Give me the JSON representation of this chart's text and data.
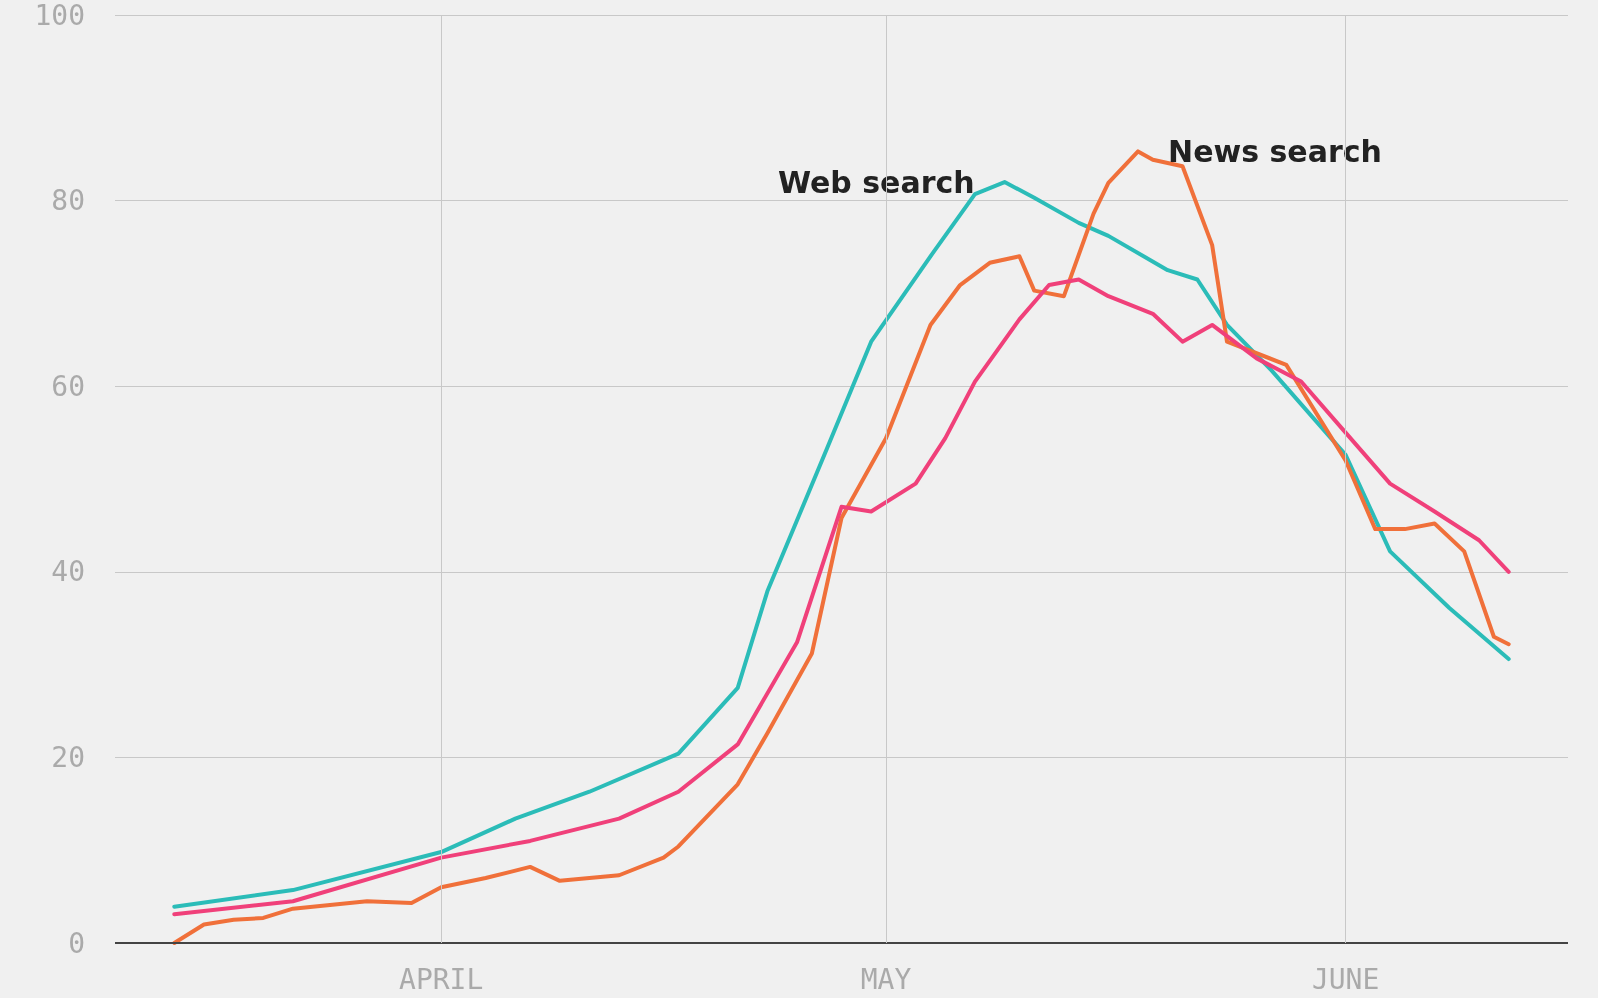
{
  "chart_data": {
    "type": "line",
    "xlim": [
      "--03-10",
      "--06-16"
    ],
    "ylim": [
      0,
      100
    ],
    "yticks": [
      0,
      20,
      40,
      60,
      80,
      100
    ],
    "xticks": [
      {
        "value": "--04-01",
        "label": "APRIL"
      },
      {
        "value": "--05-01",
        "label": "MAY"
      },
      {
        "value": "--06-01",
        "label": "JUNE"
      }
    ],
    "grid": true,
    "legend": false,
    "marker": "none",
    "line_style": "solid",
    "series": [
      {
        "name": "Web search",
        "color": "#2bbcb8",
        "x": [
          "--03-14",
          "--03-22",
          "--04-01",
          "--04-06",
          "--04-11",
          "--04-17",
          "--04-21",
          "--04-23",
          "--04-27",
          "--04-30",
          "--05-04",
          "--05-07",
          "--05-09",
          "--05-11",
          "--05-14",
          "--05-16",
          "--05-20",
          "--05-22",
          "--05-24",
          "--05-27",
          "--06-01",
          "--06-04",
          "--06-08",
          "--06-12"
        ],
        "values": [
          3.9,
          5.7,
          9.8,
          13.4,
          16.3,
          20.4,
          27.5,
          37.9,
          53.2,
          64.8,
          74,
          80.7,
          82,
          80.3,
          77.6,
          76.2,
          72.5,
          71.5,
          66.6,
          61.7,
          52.6,
          42.2,
          36.1,
          30.6
        ]
      },
      {
        "name": "News search",
        "color": "#f0703a",
        "x": [
          "--03-14",
          "--03-16",
          "--03-18",
          "--03-20",
          "--03-22",
          "--03-27",
          "--03-30",
          "--04-01",
          "--04-04",
          "--04-07",
          "--04-09",
          "--04-13",
          "--04-16",
          "--04-17",
          "--04-21",
          "--04-23",
          "--04-26",
          "--04-28",
          "--05-01",
          "--05-04",
          "--05-06",
          "--05-08",
          "--05-10",
          "--05-11",
          "--05-13",
          "--05-15",
          "--05-16",
          "--05-18",
          "--05-19",
          "--05-21",
          "--05-23",
          "--05-24",
          "--05-28",
          "--06-01",
          "--06-03",
          "--06-05",
          "--06-07",
          "--06-09",
          "--06-11",
          "--06-12"
        ],
        "values": [
          0,
          2,
          2.5,
          2.7,
          3.7,
          4.5,
          4.3,
          6,
          7,
          8.2,
          6.7,
          7.3,
          9.2,
          10.4,
          17.1,
          22.6,
          31.2,
          45.8,
          54.4,
          66.6,
          70.9,
          73.3,
          74,
          70.3,
          69.7,
          78.6,
          81.9,
          85.3,
          84.4,
          83.7,
          75.2,
          64.8,
          62.3,
          52,
          44.6,
          44.6,
          45.2,
          42.2,
          33,
          32.2
        ]
      },
      {
        "color": "#f0407a",
        "x": [
          "--03-14",
          "--03-22",
          "--04-01",
          "--04-07",
          "--04-13",
          "--04-17",
          "--04-21",
          "--04-25",
          "--04-28",
          "--04-30",
          "--05-03",
          "--05-05",
          "--05-07",
          "--05-10",
          "--05-12",
          "--05-14",
          "--05-16",
          "--05-19",
          "--05-21",
          "--05-23",
          "--05-26",
          "--05-29",
          "--06-01",
          "--06-04",
          "--06-07",
          "--06-10",
          "--06-12"
        ],
        "values": [
          3.1,
          4.5,
          9.2,
          11,
          13.4,
          16.3,
          21.4,
          32.4,
          47,
          46.5,
          49.5,
          54.4,
          60.5,
          67.2,
          70.9,
          71.5,
          69.7,
          67.8,
          64.8,
          66.6,
          63,
          60.5,
          55,
          49.5,
          46.5,
          43.4,
          40
        ]
      }
    ]
  }
}
